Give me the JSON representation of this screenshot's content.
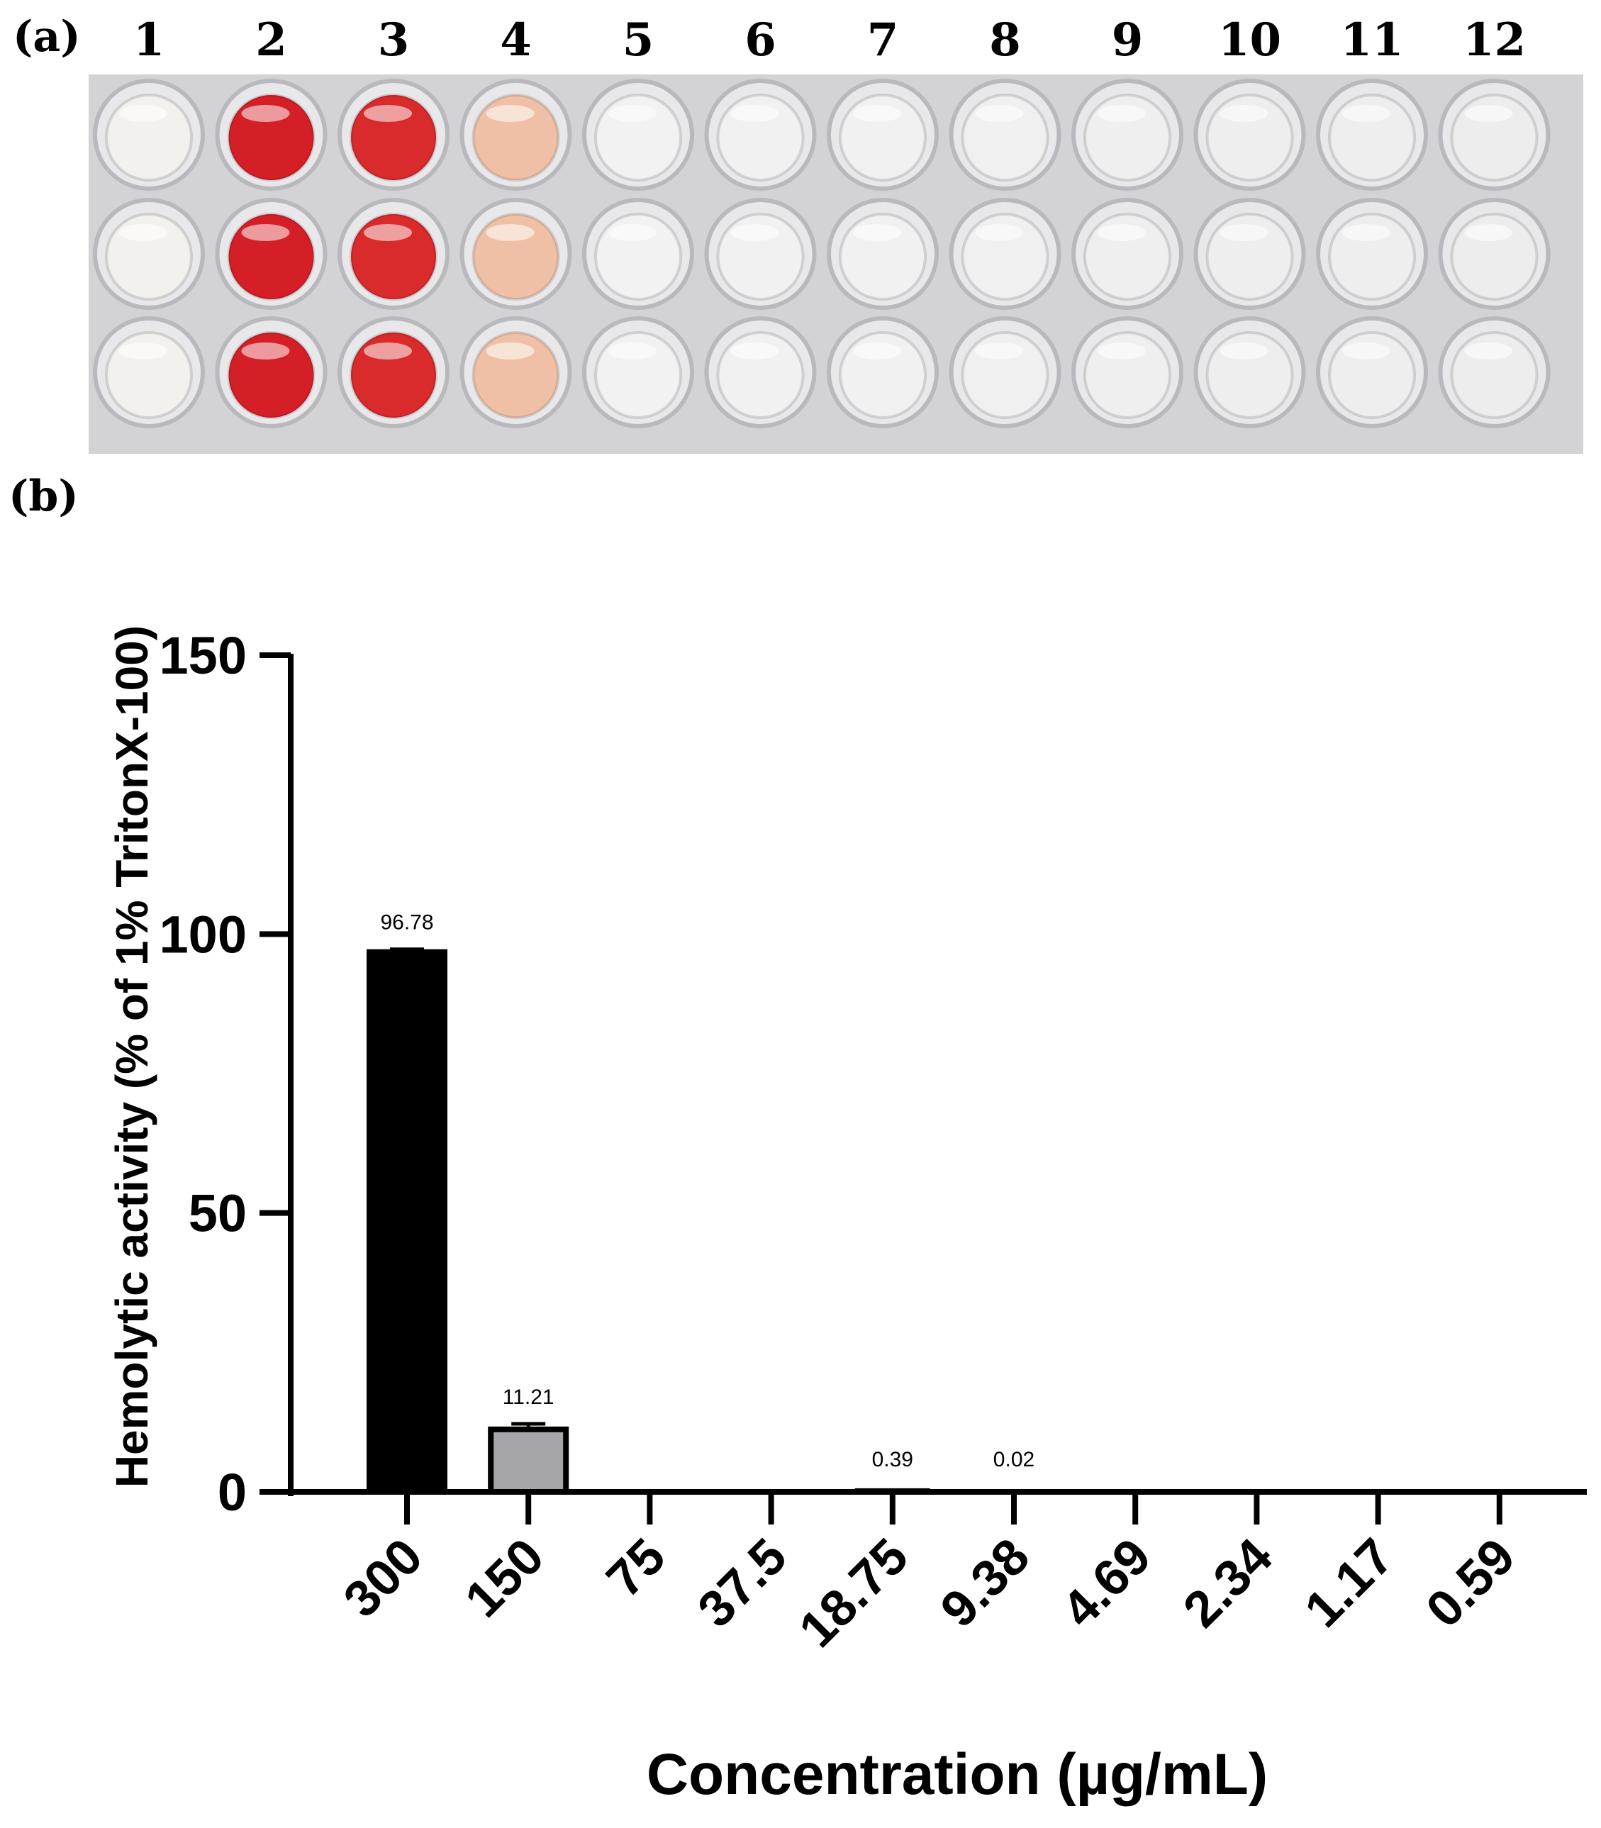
{
  "panel_a": {
    "label": "(a)",
    "column_numbers": [
      "1",
      "2",
      "3",
      "4",
      "5",
      "6",
      "7",
      "8",
      "9",
      "10",
      "11",
      "12"
    ],
    "rows": 3,
    "well_colors": [
      "#f3f1ee",
      "#d41f27",
      "#d92a2c",
      "#f0c0a6",
      "#f2f2f2",
      "#f1f1f1",
      "#f1f1f1",
      "#f0f0f0",
      "#efefef",
      "#eeeeee",
      "#eeeeee",
      "#ededed"
    ]
  },
  "panel_b": {
    "label": "(b)"
  },
  "chart_data": {
    "type": "bar",
    "title": "",
    "xlabel": "Concentration (µg/mL)",
    "ylabel": "Hemolytic activity (% of 1% TritonX-100)",
    "ylim": [
      0,
      150
    ],
    "yticks": [
      "0",
      "50",
      "100",
      "150"
    ],
    "categories": [
      "300",
      "150",
      "75",
      "37.5",
      "18.75",
      "9.38",
      "4.69",
      "2.34",
      "1.17",
      "0.59"
    ],
    "values": [
      96.78,
      11.21,
      0,
      0,
      0.39,
      0.02,
      0,
      0,
      0,
      0
    ],
    "errors": [
      0.5,
      1.0,
      0,
      0,
      0,
      0,
      0,
      0,
      0,
      0
    ],
    "data_labels": [
      "96.78",
      "11.21",
      "",
      "",
      "0.39",
      "0.02",
      "",
      "",
      "",
      ""
    ],
    "bar_colors": [
      "#000000",
      "#a6a6aa",
      "#ffffff",
      "#ffffff",
      "#ffffff",
      "#ffffff",
      "#ffffff",
      "#ffffff",
      "#ffffff",
      "#ffffff"
    ]
  }
}
